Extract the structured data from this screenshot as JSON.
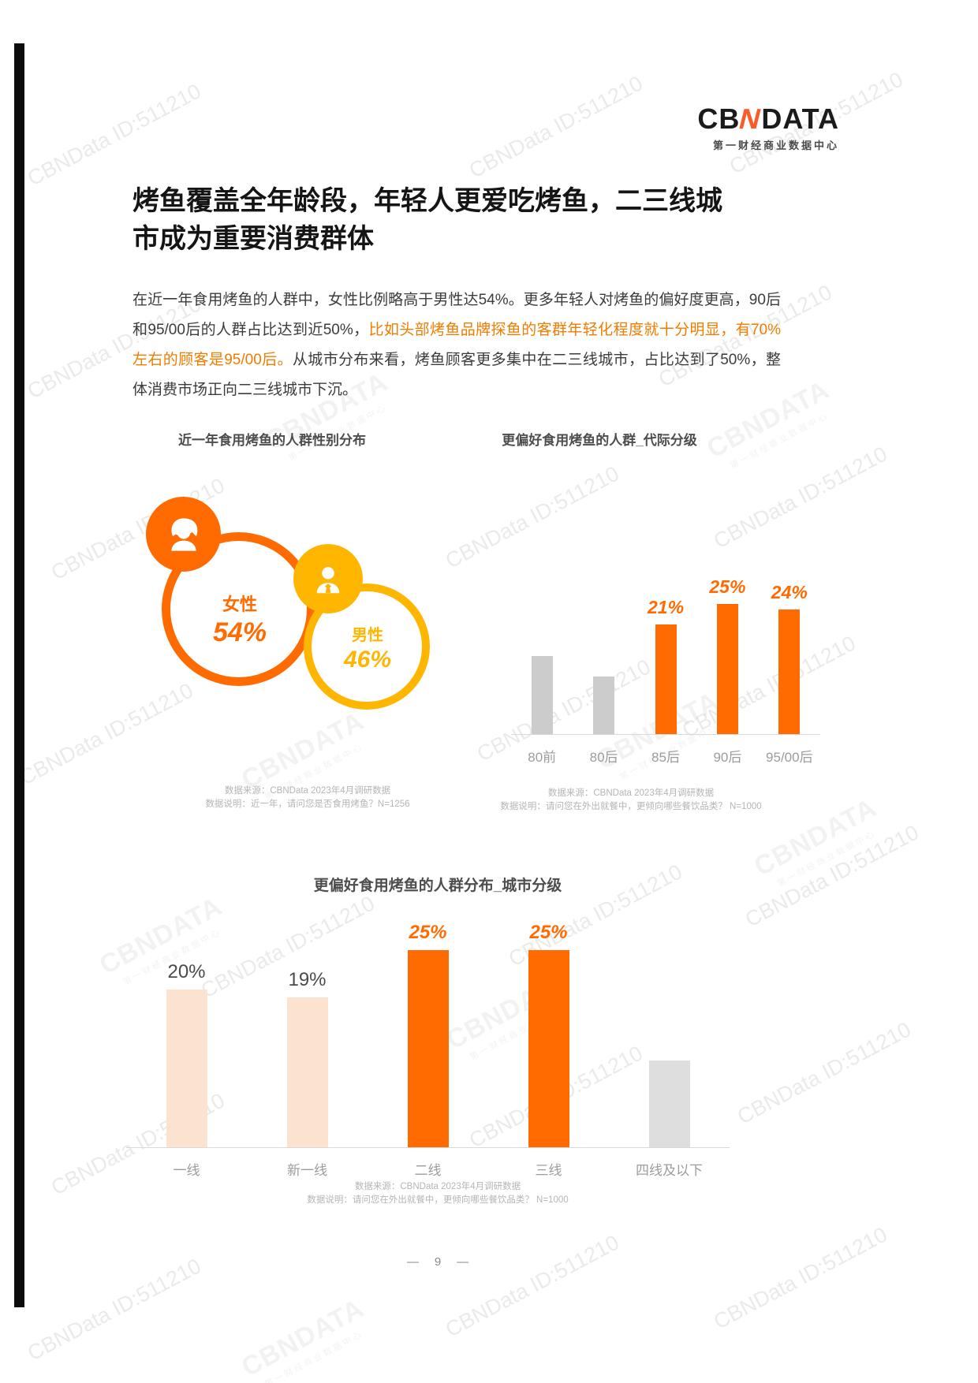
{
  "watermark": {
    "id_text": "CBNData ID:511210",
    "logo_text": "CBNDATA",
    "logo_subtext": "第一财经商业数据中心"
  },
  "logo": {
    "part_left": "CB",
    "part_accent": "N",
    "part_right": "DATA",
    "subtitle": "第一财经商业数据中心"
  },
  "title": {
    "lines": [
      "烤鱼覆盖全年龄段，年轻人更爱吃烤鱼，二三线城",
      "市成为重要消费群体"
    ]
  },
  "paragraph": {
    "segments": [
      {
        "text": "在近一年食用烤鱼的人群中，女性比例略高于男性达54%。更多年轻人对烤鱼的偏好度更高，90后和95/00后的人群占比达到近50%，",
        "style": "dark"
      },
      {
        "text": "比如头部烤鱼品牌探鱼的客群年轻化程度就十分明显，有70%左右的顾客是95/00后。",
        "style": "orange"
      },
      {
        "text": "从城市分布来看，烤鱼顾客更多集中在二三线城市，占比达到了50%，整体消费市场正向二三线城市下沉。",
        "style": "dark"
      }
    ]
  },
  "colors": {
    "accent_orange": "#ff6b00",
    "accent_yellow": "#ffb600",
    "pale_orange": "#fce3cf",
    "bar_gray": "#cccccc",
    "bar_lightgray": "#dedede",
    "paragraph_orange": "#f07c00"
  },
  "chart_data": [
    {
      "type": "pie",
      "title": "近一年食用烤鱼的人群性别分布",
      "categories": [
        "女性",
        "男性"
      ],
      "values": [
        54,
        46
      ],
      "value_labels": [
        "54%",
        "46%"
      ],
      "colors": [
        "#ff6b00",
        "#ffb600"
      ],
      "notes": [
        "数据来源：CBNData 2023年4月调研数据",
        "数据说明：近一年，请问您是否食用烤鱼？N=1256"
      ]
    },
    {
      "type": "bar",
      "title": "更偏好食用烤鱼的人群_代际分级",
      "categories": [
        "80前",
        "80后",
        "85后",
        "90后",
        "95/00后"
      ],
      "values": [
        15,
        11,
        21,
        25,
        24
      ],
      "value_labels": [
        null,
        null,
        "21%",
        "25%",
        "24%"
      ],
      "label_styles": [
        null,
        null,
        "orange",
        "orange",
        "orange"
      ],
      "bar_styles": [
        "gray",
        "gray",
        "highlight",
        "highlight",
        "highlight"
      ],
      "ylim": [
        0,
        30
      ],
      "unit": "%",
      "legend": "none",
      "grid": false,
      "notes": [
        "数据来源：CBNData 2023年4月调研数据",
        "数据说明：请问您在外出就餐中，更倾向哪些餐饮品类？ N=1000"
      ]
    },
    {
      "type": "bar",
      "title": "更偏好食用烤鱼的人群分布_城市分级",
      "categories": [
        "一线",
        "新一线",
        "二线",
        "三线",
        "四线及以下"
      ],
      "values": [
        20,
        19,
        25,
        25,
        11
      ],
      "value_labels": [
        "20%",
        "19%",
        "25%",
        "25%",
        null
      ],
      "label_styles": [
        "dark",
        "dark",
        "orange",
        "orange",
        null
      ],
      "bar_styles": [
        "pale",
        "pale",
        "highlight",
        "highlight",
        "lightgray"
      ],
      "ylim": [
        0,
        30
      ],
      "unit": "%",
      "legend": "none",
      "grid": false,
      "notes": [
        "数据来源：CBNData 2023年4月调研数据",
        "数据说明：请问您在外出就餐中，更倾向哪些餐饮品类？ N=1000"
      ]
    }
  ],
  "footer": {
    "dash": "—",
    "page_number": "9"
  }
}
